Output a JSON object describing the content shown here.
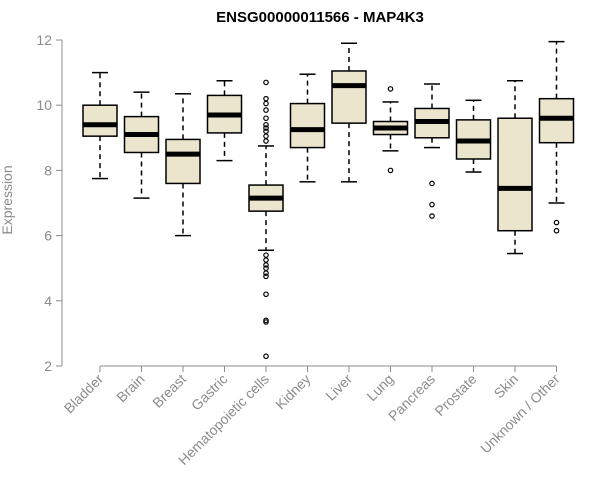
{
  "chart_data": {
    "type": "boxplot",
    "title": "ENSG00000011566 - MAP4K3",
    "xlabel": "",
    "ylabel": "Expression",
    "ylim": [
      2,
      12
    ],
    "yticks": [
      2,
      4,
      6,
      8,
      10,
      12
    ],
    "box_fill": "#ece5ce",
    "categories": [
      "Bladder",
      "Brain",
      "Breast",
      "Gastric",
      "Hematopoietic cells",
      "Kidney",
      "Liver",
      "Lung",
      "Pancreas",
      "Prostate",
      "Skin",
      "Unknown / Other"
    ],
    "boxes": [
      {
        "whisker_low": 7.75,
        "q1": 9.05,
        "median": 9.4,
        "q3": 10.0,
        "whisker_high": 11.0,
        "outliers": []
      },
      {
        "whisker_low": 7.15,
        "q1": 8.55,
        "median": 9.1,
        "q3": 9.65,
        "whisker_high": 10.4,
        "outliers": []
      },
      {
        "whisker_low": 6.0,
        "q1": 7.6,
        "median": 8.5,
        "q3": 8.95,
        "whisker_high": 10.35,
        "outliers": []
      },
      {
        "whisker_low": 8.3,
        "q1": 9.15,
        "median": 9.7,
        "q3": 10.3,
        "whisker_high": 10.75,
        "outliers": []
      },
      {
        "whisker_low": 5.55,
        "q1": 6.75,
        "median": 7.15,
        "q3": 7.55,
        "whisker_high": 8.75,
        "outliers": [
          10.7,
          10.2,
          10.05,
          9.85,
          9.6,
          9.4,
          9.3,
          9.2,
          9.05,
          8.9,
          5.4,
          5.25,
          5.1,
          5.0,
          4.85,
          4.75,
          4.2,
          3.4,
          3.35,
          2.3
        ]
      },
      {
        "whisker_low": 7.65,
        "q1": 8.7,
        "median": 9.25,
        "q3": 10.05,
        "whisker_high": 10.95,
        "outliers": []
      },
      {
        "whisker_low": 7.65,
        "q1": 9.45,
        "median": 10.6,
        "q3": 11.05,
        "whisker_high": 11.9,
        "outliers": []
      },
      {
        "whisker_low": 8.6,
        "q1": 9.1,
        "median": 9.3,
        "q3": 9.5,
        "whisker_high": 10.1,
        "outliers": [
          10.5,
          8.0
        ]
      },
      {
        "whisker_low": 8.7,
        "q1": 9.0,
        "median": 9.5,
        "q3": 9.9,
        "whisker_high": 10.65,
        "outliers": [
          7.6,
          6.95,
          6.6
        ]
      },
      {
        "whisker_low": 7.95,
        "q1": 8.35,
        "median": 8.9,
        "q3": 9.55,
        "whisker_high": 10.15,
        "outliers": []
      },
      {
        "whisker_low": 5.45,
        "q1": 6.15,
        "median": 7.45,
        "q3": 9.6,
        "whisker_high": 10.75,
        "outliers": []
      },
      {
        "whisker_low": 7.0,
        "q1": 8.85,
        "median": 9.6,
        "q3": 10.2,
        "whisker_high": 11.95,
        "outliers": [
          6.4,
          6.15
        ]
      }
    ]
  }
}
